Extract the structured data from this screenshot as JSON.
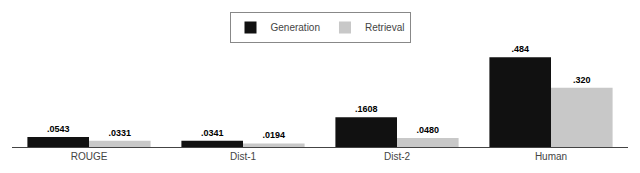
{
  "chart_data": {
    "type": "bar",
    "categories": [
      "ROUGE",
      "Dist-1",
      "Dist-2",
      "Human"
    ],
    "series": [
      {
        "name": "Generation",
        "color": "#111111",
        "values": [
          0.0543,
          0.0341,
          0.1608,
          0.484
        ],
        "value_labels": [
          ".0543",
          ".0341",
          ".1608",
          ".484"
        ]
      },
      {
        "name": "Retrieval",
        "color": "#c8c8c8",
        "values": [
          0.0331,
          0.0194,
          0.048,
          0.32
        ],
        "value_labels": [
          ".0331",
          ".0194",
          ".0480",
          ".320"
        ]
      }
    ],
    "ylim": [
      0,
      0.55
    ],
    "data_labels": true,
    "tick_labels": "x",
    "legend": "top",
    "grid": false
  }
}
